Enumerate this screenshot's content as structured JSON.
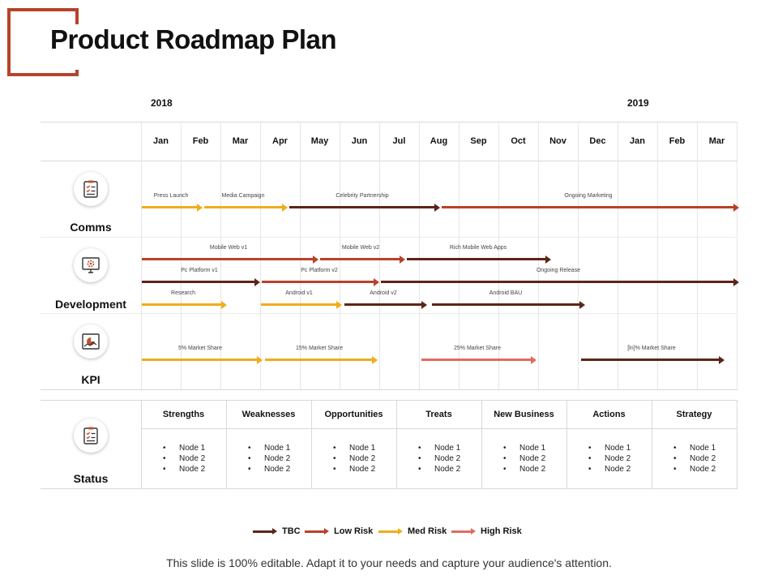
{
  "title": "Product Roadmap Plan",
  "years": [
    "2018",
    "2019"
  ],
  "months": [
    "Jan",
    "Feb",
    "Mar",
    "Apr",
    "May",
    "Jun",
    "Jul",
    "Aug",
    "Sep",
    "Oct",
    "Nov",
    "Dec",
    "Jan",
    "Feb",
    "Mar"
  ],
  "colors": {
    "tbc": "#5c2518",
    "low_risk": "#b9402a",
    "med_risk": "#f0ad1b",
    "high_risk": "#e06c60",
    "accent": "#b5442a"
  },
  "rows": [
    {
      "label": "Comms",
      "icon": "clipboard-checklist-icon"
    },
    {
      "label": "Development",
      "icon": "monitor-gear-icon"
    },
    {
      "label": "KPI",
      "icon": "chart-report-icon"
    },
    {
      "label": "Status",
      "icon": "clipboard-checklist-icon"
    }
  ],
  "bars": [
    {
      "label": "Press Launch",
      "risk": "med_risk"
    },
    {
      "label": "Media Campaign",
      "risk": "med_risk"
    },
    {
      "label": "Celebrity Partnership",
      "risk": "tbc"
    },
    {
      "label": "Ongoing  Marketing",
      "risk": "low_risk"
    },
    {
      "label": "Mobile Web v1",
      "risk": "low_risk"
    },
    {
      "label": "Mobile Web v2",
      "risk": "low_risk"
    },
    {
      "label": "Rich Mobile Web Apps",
      "risk": "tbc"
    },
    {
      "label": "Pc Platform  v1",
      "risk": "tbc"
    },
    {
      "label": "Pc Platform  v2",
      "risk": "low_risk"
    },
    {
      "label": "Ongoing  Release",
      "risk": "tbc"
    },
    {
      "label": "Research",
      "risk": "med_risk"
    },
    {
      "label": "Android  v1",
      "risk": "med_risk"
    },
    {
      "label": "Android  v2",
      "risk": "tbc"
    },
    {
      "label": "Android  BAU",
      "risk": "tbc"
    },
    {
      "label": "5% Market Share",
      "risk": "med_risk"
    },
    {
      "label": "15% Market Share",
      "risk": "med_risk"
    },
    {
      "label": "25% Market Share",
      "risk": "high_risk"
    },
    {
      "label": "[ln]% Market Share",
      "risk": "tbc"
    }
  ],
  "status": {
    "columns": [
      {
        "header": "Strengths",
        "items": [
          "Node 1",
          "Node 2",
          "Node 2"
        ]
      },
      {
        "header": "Weaknesses",
        "items": [
          "Node 1",
          "Node 2",
          "Node 2"
        ]
      },
      {
        "header": "Opportunities",
        "items": [
          "Node 1",
          "Node 2",
          "Node 2"
        ]
      },
      {
        "header": "Treats",
        "items": [
          "Node 1",
          "Node 2",
          "Node 2"
        ]
      },
      {
        "header": "New Business",
        "items": [
          "Node 1",
          "Node 2",
          "Node 2"
        ]
      },
      {
        "header": "Actions",
        "items": [
          "Node 1",
          "Node 2",
          "Node 2"
        ]
      },
      {
        "header": "Strategy",
        "items": [
          "Node 1",
          "Node 2",
          "Node 2"
        ]
      }
    ]
  },
  "legend": [
    {
      "label": "TBC",
      "risk": "tbc"
    },
    {
      "label": "Low Risk",
      "risk": "low_risk"
    },
    {
      "label": "Med Risk",
      "risk": "med_risk"
    },
    {
      "label": "High Risk",
      "risk": "high_risk"
    }
  ],
  "footer": "This slide is 100% editable. Adapt it to your needs and capture your audience's attention."
}
